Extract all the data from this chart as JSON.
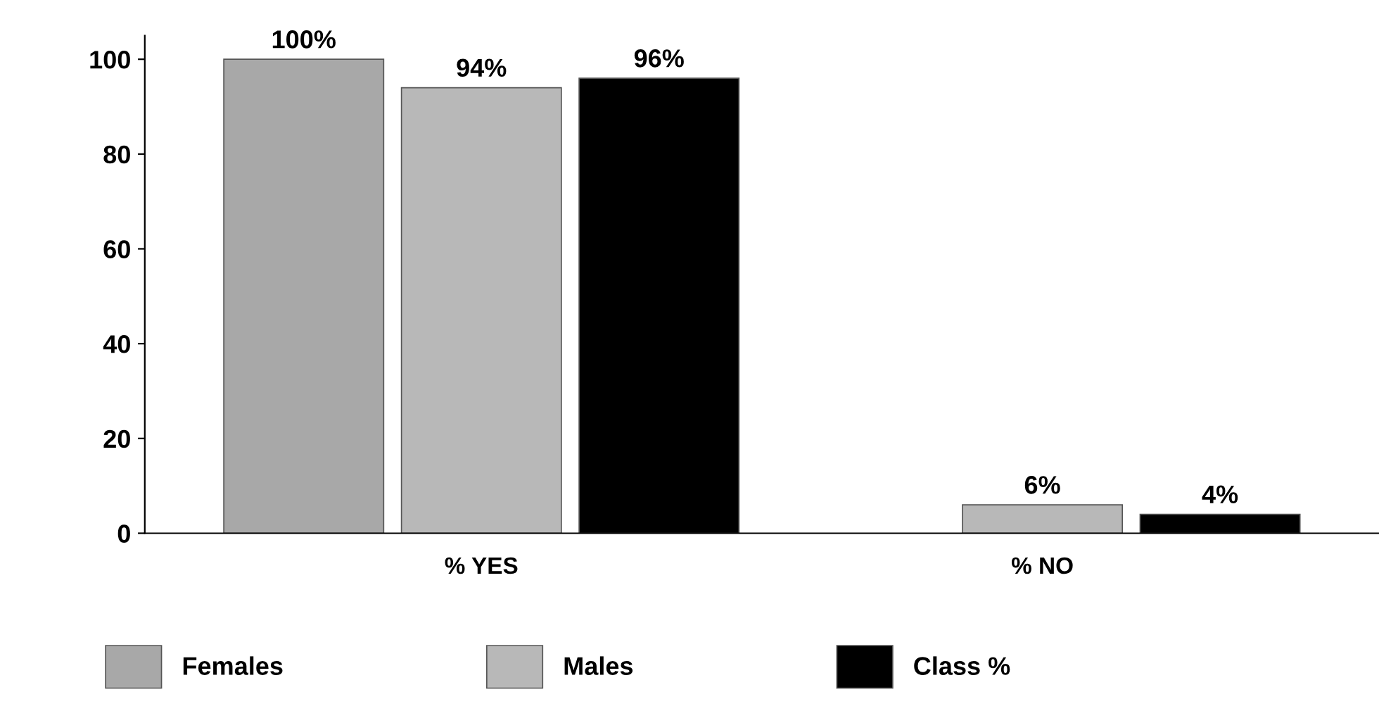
{
  "chart_data": {
    "type": "bar",
    "categories": [
      "% YES",
      "% NO"
    ],
    "series": [
      {
        "name": "Females",
        "color": "#a8a8a8",
        "values": [
          100,
          null
        ],
        "value_labels": [
          "100%",
          null
        ]
      },
      {
        "name": "Males",
        "color": "#b8b8b8",
        "values": [
          94,
          6
        ],
        "value_labels": [
          "94%",
          "6%"
        ]
      },
      {
        "name": "Class %",
        "color": "#000000",
        "values": [
          96,
          4
        ],
        "value_labels": [
          "96%",
          "4%"
        ]
      }
    ],
    "ylim": [
      0,
      105
    ],
    "yticks": [
      0,
      20,
      40,
      60,
      80,
      100
    ],
    "grid": false,
    "legend": "bottom"
  }
}
